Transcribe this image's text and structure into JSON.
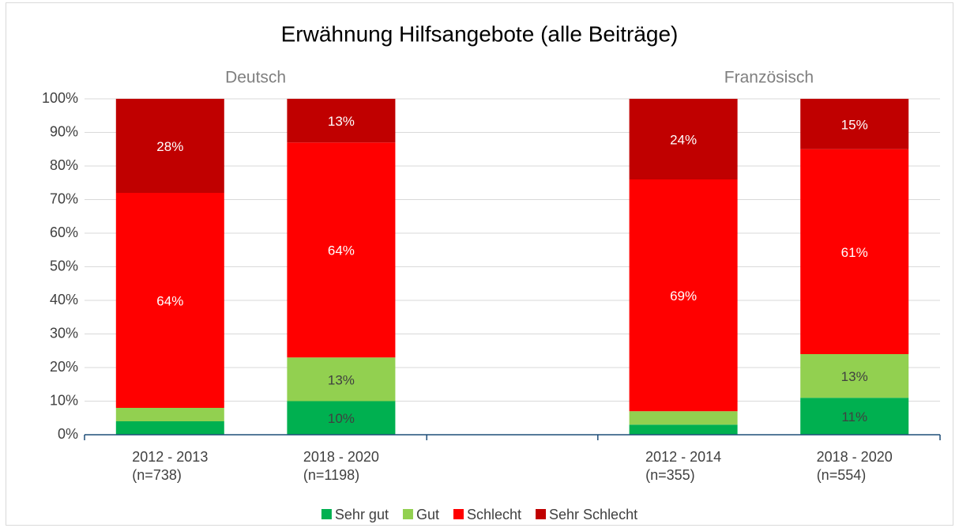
{
  "chart_data": {
    "type": "stacked_bar",
    "title": "Erwähnung Hilfsangebote (alle Beiträge)",
    "annotations": [
      "Deutsch",
      "Französisch"
    ],
    "categories": [
      [
        "2012 - 2013",
        "(n=738)"
      ],
      [
        "2018 - 2020",
        "(n=1198)"
      ],
      null,
      [
        "2012 - 2014",
        "(n=355)"
      ],
      [
        "2018 - 2020",
        "(n=554)"
      ]
    ],
    "series": [
      {
        "name": "Sehr gut",
        "color": "#00b050",
        "values": [
          4,
          10,
          null,
          3,
          11
        ],
        "value_labels": [
          null,
          "10%",
          null,
          null,
          "11%"
        ]
      },
      {
        "name": "Gut",
        "color": "#92d050",
        "values": [
          4,
          13,
          null,
          4,
          13
        ],
        "value_labels": [
          null,
          "13%",
          null,
          null,
          "13%"
        ]
      },
      {
        "name": "Schlecht",
        "color": "#ff0000",
        "values": [
          64,
          64,
          null,
          69,
          61
        ],
        "value_labels": [
          "64%",
          "64%",
          null,
          "69%",
          "61%"
        ]
      },
      {
        "name": "Sehr Schlecht",
        "color": "#c00000",
        "values": [
          28,
          13,
          null,
          24,
          15
        ],
        "value_labels": [
          "28%",
          "13%",
          null,
          "24%",
          "15%"
        ]
      }
    ],
    "ylim": [
      0,
      100
    ],
    "yticks": [
      {
        "value": 0,
        "label": "0%"
      },
      {
        "value": 10,
        "label": "10%"
      },
      {
        "value": 20,
        "label": "20%"
      },
      {
        "value": 30,
        "label": "30%"
      },
      {
        "value": 40,
        "label": "40%"
      },
      {
        "value": 50,
        "label": "50%"
      },
      {
        "value": 60,
        "label": "60%"
      },
      {
        "value": 70,
        "label": "70%"
      },
      {
        "value": 80,
        "label": "80%"
      },
      {
        "value": 90,
        "label": "90%"
      },
      {
        "value": 100,
        "label": "100%"
      }
    ],
    "grid": true,
    "legend": "bottom"
  }
}
